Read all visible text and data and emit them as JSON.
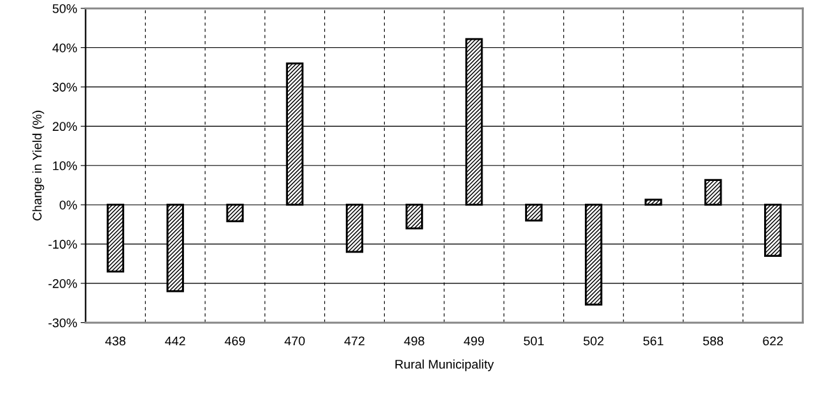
{
  "chart_data": {
    "type": "bar",
    "xlabel": "Rural Municipality",
    "ylabel": "Change in Yield (%)",
    "categories": [
      "438",
      "442",
      "469",
      "470",
      "472",
      "498",
      "499",
      "501",
      "502",
      "561",
      "588",
      "622"
    ],
    "values": [
      -17,
      -22,
      -4.2,
      36,
      -12,
      -6,
      42.2,
      -4,
      -25.4,
      1.3,
      6.3,
      -13
    ],
    "color": "#000000",
    "ylim": [
      -30,
      50
    ],
    "yticks": [
      {
        "value": -30,
        "label": "-30%"
      },
      {
        "value": -20,
        "label": "-20%"
      },
      {
        "value": -10,
        "label": "-10%"
      },
      {
        "value": 0,
        "label": "0%"
      },
      {
        "value": 10,
        "label": "10%"
      },
      {
        "value": 20,
        "label": "20%"
      },
      {
        "value": 30,
        "label": "30%"
      },
      {
        "value": 40,
        "label": "40%"
      },
      {
        "value": 50,
        "label": "50%"
      }
    ],
    "grid": true
  }
}
